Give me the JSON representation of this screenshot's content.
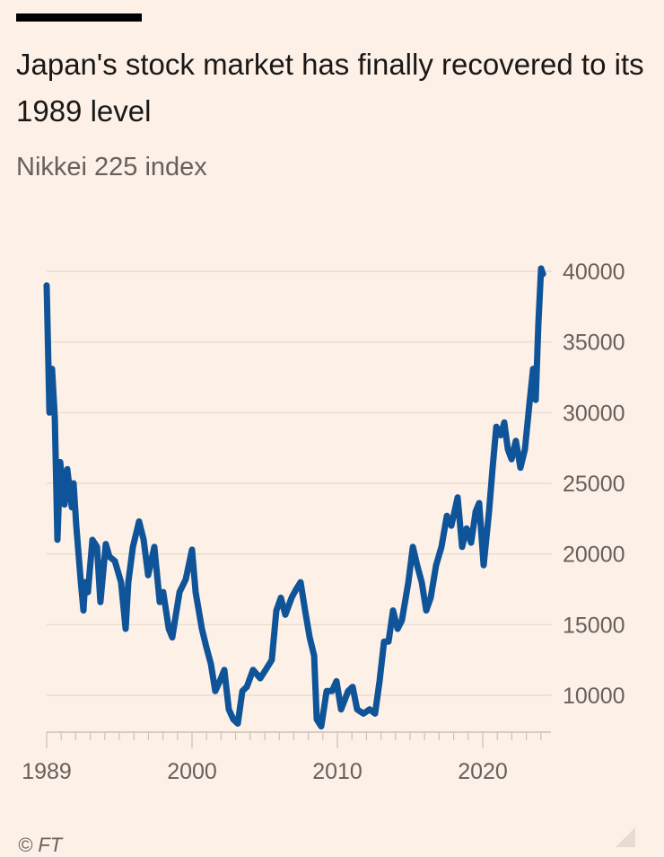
{
  "header": {
    "title": "Japan's stock market has finally recovered to its 1989 level",
    "subtitle": "Nikkei 225 index"
  },
  "source": "© FT",
  "chart_data": {
    "type": "line",
    "title": "Japan's stock market has finally recovered to its 1989 level",
    "subtitle": "Nikkei 225 index",
    "xlabel": "",
    "ylabel": "",
    "xlim": [
      1990.0,
      2024.5
    ],
    "ylim": [
      7400,
      41000
    ],
    "x_ticks": [
      {
        "value": 1990.0,
        "label": "1989"
      },
      {
        "value": 2000.0,
        "label": "2000"
      },
      {
        "value": 2010.0,
        "label": "2010"
      },
      {
        "value": 2020.0,
        "label": "2020"
      }
    ],
    "y_ticks": [
      10000,
      15000,
      20000,
      25000,
      30000,
      35000,
      40000
    ],
    "y_axis_side": "right",
    "grid": "horizontal",
    "line_color": "#0f5499",
    "series": [
      {
        "x": [
          1990.0,
          1990.19,
          1990.37,
          1990.56,
          1990.74,
          1990.93,
          1991.23,
          1991.42,
          1991.73,
          1991.85,
          1992.04,
          1992.35,
          1992.53,
          1992.65,
          1992.84,
          1993.15,
          1993.46,
          1993.7,
          1994.07,
          1994.32,
          1994.69,
          1995.12,
          1995.43,
          1995.62,
          1995.93,
          1996.36,
          1996.67,
          1996.98,
          1997.41,
          1997.78,
          1998.02,
          1998.4,
          1998.64,
          1998.89,
          1999.14,
          1999.57,
          2000.0,
          2000.25,
          2000.68,
          2000.99,
          2001.3,
          2001.6,
          2001.91,
          2002.22,
          2002.53,
          2002.84,
          2003.15,
          2003.46,
          2003.77,
          2004.2,
          2004.69,
          2005.06,
          2005.49,
          2005.8,
          2006.11,
          2006.42,
          2006.85,
          2007.16,
          2007.47,
          2007.78,
          2008.09,
          2008.4,
          2008.58,
          2008.89,
          2009.26,
          2009.63,
          2009.94,
          2010.25,
          2010.74,
          2011.05,
          2011.36,
          2011.79,
          2012.22,
          2012.59,
          2012.9,
          2013.21,
          2013.52,
          2013.83,
          2014.14,
          2014.44,
          2014.88,
          2015.19,
          2015.49,
          2015.8,
          2016.11,
          2016.42,
          2016.79,
          2017.16,
          2017.53,
          2017.84,
          2018.27,
          2018.58,
          2018.89,
          2019.2,
          2019.51,
          2019.75,
          2020.06,
          2020.43,
          2020.68,
          2020.93,
          2021.23,
          2021.48,
          2021.73,
          2021.98,
          2022.28,
          2022.59,
          2022.9,
          2023.21,
          2023.46,
          2023.64,
          2023.83,
          2024.01,
          2024.14
        ],
        "values": [
          39000,
          30000,
          33100,
          29600,
          21000,
          26500,
          23500,
          26000,
          23300,
          25000,
          22000,
          18000,
          16000,
          18000,
          17300,
          21000,
          20500,
          16600,
          20700,
          19800,
          19500,
          18000,
          14700,
          18000,
          20500,
          22300,
          21000,
          18500,
          20500,
          16600,
          17300,
          14700,
          14100,
          15700,
          17300,
          18200,
          20300,
          17300,
          14700,
          13400,
          12200,
          10300,
          11000,
          11800,
          9000,
          8300,
          8000,
          10300,
          10600,
          11800,
          11200,
          11800,
          12500,
          16000,
          16900,
          15700,
          16900,
          17500,
          18000,
          16000,
          14100,
          12800,
          8300,
          7800,
          10300,
          10300,
          11000,
          9000,
          10300,
          10600,
          9000,
          8700,
          9000,
          8700,
          11000,
          13800,
          13800,
          16000,
          14700,
          15300,
          18000,
          20500,
          19200,
          18000,
          16000,
          16900,
          19200,
          20500,
          22700,
          22000,
          24000,
          20500,
          21800,
          20800,
          23000,
          23600,
          19200,
          23000,
          26100,
          29000,
          28400,
          29300,
          27400,
          26700,
          28000,
          26100,
          27400,
          30600,
          33100,
          30900,
          36300,
          40200,
          39800
        ]
      }
    ]
  }
}
